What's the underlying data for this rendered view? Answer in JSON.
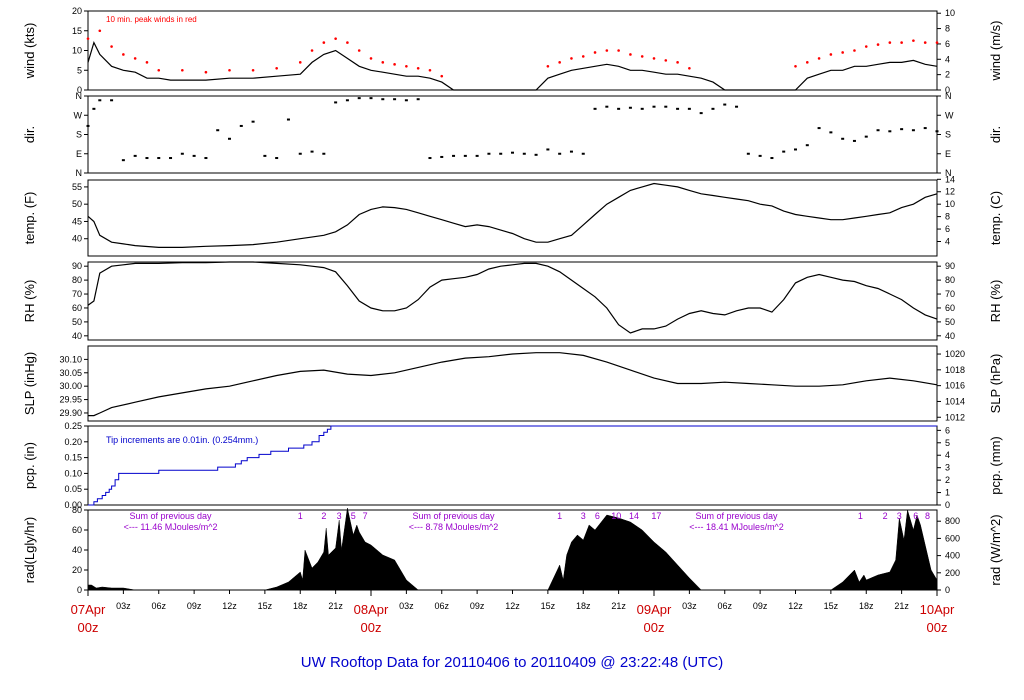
{
  "figure_title": "UW Rooftop Data for 20110406  to  20110409 @ 23:22:48  (UTC)",
  "colors": {
    "axes": "#000000",
    "data": "#000000",
    "peak": "#ff0000",
    "precip": "#0000cc",
    "solar_note": "#9900cc",
    "date_label": "#cc0000",
    "title": "#0000cc"
  },
  "time_axis": {
    "range_hours": [
      0,
      72
    ],
    "hour_ticks": [
      "03z",
      "06z",
      "09z",
      "12z",
      "15z",
      "18z",
      "21z",
      "03z",
      "06z",
      "09z",
      "12z",
      "15z",
      "18z",
      "21z",
      "03z",
      "06z",
      "09z",
      "12z",
      "15z",
      "18z",
      "21z"
    ],
    "hour_tick_positions": [
      3,
      6,
      9,
      12,
      15,
      18,
      21,
      27,
      30,
      33,
      36,
      39,
      42,
      45,
      51,
      54,
      57,
      60,
      63,
      66,
      69
    ],
    "date_labels": [
      {
        "date": "07Apr",
        "hour": "00z",
        "at": 0
      },
      {
        "date": "08Apr",
        "hour": "00z",
        "at": 24
      },
      {
        "date": "09Apr",
        "hour": "00z",
        "at": 48
      },
      {
        "date": "10Apr",
        "hour": "00z",
        "at": 72
      }
    ]
  },
  "chart_data": [
    {
      "type": "line",
      "id": "wind",
      "left_label": "wind (kts)",
      "right_label": "wind (m/s)",
      "annotation": "10 min. peak winds in red",
      "ylim": [
        0,
        20
      ],
      "left_ticks": [
        "0",
        "5",
        "10",
        "15",
        "20"
      ],
      "left_tick_values": [
        0,
        5,
        10,
        15,
        20
      ],
      "right_ticks": [
        "0",
        "2",
        "4",
        "6",
        "8",
        "10"
      ],
      "right_tick_values_left_units": [
        0,
        3.89,
        7.78,
        11.66,
        15.55,
        19.44
      ],
      "series": [
        {
          "key": "speed",
          "x": [
            0,
            0.5,
            1,
            2,
            3,
            4,
            5,
            6,
            7,
            8,
            10,
            12,
            14,
            16,
            18,
            19,
            20,
            21,
            22,
            23,
            24,
            25,
            26,
            27,
            28,
            29,
            30,
            31,
            32,
            33,
            34,
            35,
            36,
            37,
            38,
            39,
            40,
            41,
            42,
            43,
            44,
            45,
            46,
            47,
            48,
            49,
            50,
            51,
            52,
            53,
            54,
            55,
            56,
            57,
            58,
            59,
            60,
            61,
            62,
            63,
            64,
            65,
            66,
            67,
            68,
            69,
            70,
            71,
            72
          ],
          "y": [
            7,
            12,
            9,
            6,
            5,
            4.5,
            3,
            3,
            2.5,
            2.5,
            2.5,
            3,
            3,
            3.5,
            4,
            7,
            9,
            10,
            8,
            6,
            5,
            4.5,
            4,
            3.5,
            3.5,
            3,
            2,
            0,
            0,
            0,
            0,
            0,
            0,
            0,
            0,
            3,
            4,
            5,
            5.5,
            6,
            6.5,
            6,
            5,
            5,
            4.5,
            4,
            4,
            3.5,
            3,
            2,
            0,
            0,
            0,
            0,
            0,
            0,
            0,
            3,
            4,
            5,
            5,
            6,
            6,
            6.5,
            7,
            7,
            7.5,
            6.5,
            6
          ]
        },
        {
          "key": "peak",
          "x": [
            0,
            1,
            2,
            3,
            4,
            5,
            6,
            8,
            10,
            12,
            14,
            16,
            18,
            19,
            20,
            21,
            22,
            23,
            24,
            25,
            26,
            27,
            28,
            29,
            30,
            39,
            40,
            41,
            42,
            43,
            44,
            45,
            46,
            47,
            48,
            49,
            50,
            51,
            60,
            61,
            62,
            63,
            64,
            65,
            66,
            67,
            68,
            69,
            70,
            71,
            72
          ],
          "y": [
            13,
            15,
            11,
            9,
            8,
            7,
            5,
            5,
            4.5,
            5,
            5,
            5.5,
            7,
            10,
            12,
            13,
            12,
            10,
            8,
            7,
            6.5,
            6,
            5.5,
            5,
            3.5,
            6,
            7,
            8,
            8.5,
            9.5,
            10,
            10,
            9,
            8.5,
            8,
            7.5,
            7,
            5.5,
            6,
            7,
            8,
            9,
            9.5,
            10,
            11,
            11.5,
            12,
            12,
            12.5,
            12,
            12
          ]
        }
      ]
    },
    {
      "type": "scatter",
      "id": "dir",
      "left_label": "dir.",
      "right_label": "dir.",
      "ylim": [
        0,
        360
      ],
      "left_ticks": [
        "N",
        "E",
        "S",
        "W",
        "N"
      ],
      "tick_values": [
        0,
        90,
        180,
        270,
        360
      ],
      "right_ticks": [
        "N",
        "E",
        "S",
        "W",
        "N"
      ],
      "x": [
        0,
        0.5,
        1,
        2,
        3,
        4,
        5,
        6,
        7,
        8,
        9,
        10,
        11,
        12,
        13,
        14,
        15,
        16,
        17,
        18,
        19,
        20,
        21,
        22,
        23,
        24,
        25,
        26,
        27,
        28,
        29,
        30,
        31,
        32,
        33,
        34,
        35,
        36,
        37,
        38,
        39,
        40,
        41,
        42,
        43,
        44,
        45,
        46,
        47,
        48,
        49,
        50,
        51,
        52,
        53,
        54,
        55,
        56,
        57,
        58,
        59,
        60,
        61,
        62,
        63,
        64,
        65,
        66,
        67,
        68,
        69,
        70,
        71,
        72
      ],
      "y": [
        220,
        300,
        340,
        340,
        60,
        80,
        70,
        70,
        70,
        90,
        80,
        70,
        200,
        160,
        220,
        240,
        80,
        70,
        250,
        90,
        100,
        90,
        330,
        340,
        350,
        350,
        345,
        345,
        340,
        345,
        70,
        75,
        80,
        80,
        80,
        90,
        90,
        95,
        90,
        85,
        110,
        90,
        100,
        90,
        300,
        310,
        300,
        305,
        300,
        310,
        310,
        300,
        300,
        280,
        300,
        320,
        310,
        90,
        80,
        70,
        100,
        110,
        130,
        210,
        190,
        160,
        150,
        170,
        200,
        195,
        205,
        200,
        210,
        195
      ]
    },
    {
      "type": "line",
      "id": "temp",
      "left_label": "temp. (F)",
      "right_label": "temp. (C)",
      "ylim": [
        35,
        57
      ],
      "left_ticks": [
        "40",
        "45",
        "50",
        "55"
      ],
      "left_tick_values": [
        40,
        45,
        50,
        55
      ],
      "right_ticks": [
        "4",
        "6",
        "8",
        "10",
        "12",
        "14"
      ],
      "right_tick_values_left_units": [
        39.2,
        42.8,
        46.4,
        50,
        53.6,
        57.2
      ],
      "x": [
        0,
        0.5,
        1,
        2,
        3,
        4,
        6,
        8,
        10,
        12,
        14,
        16,
        18,
        20,
        21,
        22,
        23,
        24,
        25,
        26,
        27,
        28,
        29,
        30,
        31,
        32,
        33,
        34,
        35,
        36,
        37,
        38,
        39,
        40,
        41,
        42,
        43,
        44,
        45,
        46,
        47,
        48,
        49,
        50,
        51,
        52,
        53,
        54,
        55,
        56,
        57,
        58,
        59,
        60,
        61,
        62,
        63,
        64,
        65,
        66,
        67,
        68,
        69,
        70,
        71,
        72
      ],
      "y": [
        46.5,
        45,
        41,
        39,
        38.5,
        38,
        37.5,
        37.5,
        37.8,
        38,
        38.3,
        39,
        40,
        41,
        42,
        44,
        47,
        48.5,
        49.2,
        49,
        48.5,
        47.5,
        46.5,
        45.5,
        44.5,
        43.5,
        44,
        43.5,
        42.5,
        41.5,
        40,
        39,
        39,
        40,
        41,
        44,
        47,
        50,
        52,
        54,
        55,
        56,
        55.5,
        55,
        54,
        53,
        52.5,
        52,
        51.5,
        51,
        50,
        49.5,
        48,
        47,
        46.5,
        46,
        45.5,
        45.5,
        46,
        46.5,
        47,
        47.5,
        49,
        50,
        52,
        53
      ]
    },
    {
      "type": "line",
      "id": "rh",
      "left_label": "RH (%)",
      "right_label": "RH (%)",
      "ylim": [
        37,
        93
      ],
      "left_ticks": [
        "40",
        "50",
        "60",
        "70",
        "80",
        "90"
      ],
      "left_tick_values": [
        40,
        50,
        60,
        70,
        80,
        90
      ],
      "right_ticks": [
        "40",
        "50",
        "60",
        "70",
        "80",
        "90"
      ],
      "x": [
        0,
        0.5,
        1,
        2,
        3,
        4,
        6,
        8,
        10,
        12,
        14,
        16,
        18,
        19,
        20,
        21,
        22,
        23,
        24,
        25,
        26,
        27,
        28,
        29,
        30,
        31,
        32,
        33,
        34,
        35,
        36,
        37,
        38,
        39,
        40,
        41,
        42,
        43,
        44,
        45,
        46,
        47,
        48,
        49,
        50,
        51,
        52,
        53,
        54,
        55,
        56,
        57,
        58,
        59,
        60,
        61,
        62,
        63,
        64,
        65,
        66,
        67,
        68,
        69,
        70,
        71,
        72
      ],
      "y": [
        62,
        65,
        85,
        90,
        91,
        92,
        92,
        92.5,
        92.5,
        93,
        93,
        92,
        91,
        90,
        89,
        86,
        76,
        65,
        60,
        58,
        58,
        60,
        66,
        75,
        80,
        81,
        82,
        84,
        88,
        90,
        91,
        92,
        92,
        90,
        86,
        80,
        74,
        68,
        60,
        48,
        42,
        45,
        45,
        47,
        52,
        56,
        58,
        56,
        55,
        58,
        60,
        60,
        57,
        66,
        78,
        82,
        84,
        82,
        80,
        79,
        76,
        74,
        70,
        66,
        60,
        55,
        52
      ]
    },
    {
      "type": "line",
      "id": "slp",
      "left_label": "SLP (inHg)",
      "right_label": "SLP (hPa)",
      "ylim": [
        29.87,
        30.15
      ],
      "left_ticks": [
        "29.90",
        "29.95",
        "30.00",
        "30.05",
        "30.10"
      ],
      "left_tick_values": [
        29.9,
        29.95,
        30.0,
        30.05,
        30.1
      ],
      "right_ticks": [
        "1012",
        "1014",
        "1016",
        "1018",
        "1020"
      ],
      "right_tick_values_left_units": [
        29.884,
        29.943,
        30.002,
        30.061,
        30.12
      ],
      "x": [
        0,
        0.5,
        1,
        2,
        4,
        6,
        8,
        10,
        12,
        14,
        16,
        18,
        20,
        22,
        24,
        26,
        28,
        30,
        32,
        34,
        36,
        38,
        40,
        42,
        44,
        46,
        48,
        50,
        52,
        54,
        56,
        58,
        60,
        62,
        64,
        66,
        68,
        70,
        72
      ],
      "y": [
        29.89,
        29.89,
        29.9,
        29.92,
        29.94,
        29.96,
        29.975,
        29.99,
        30.0,
        30.02,
        30.04,
        30.055,
        30.06,
        30.045,
        30.04,
        30.05,
        30.07,
        30.09,
        30.105,
        30.11,
        30.12,
        30.125,
        30.125,
        30.115,
        30.09,
        30.06,
        30.03,
        30.01,
        30.01,
        30.015,
        30.01,
        30.005,
        30.0,
        30.0,
        30.005,
        30.02,
        30.03,
        30.02,
        30.005
      ]
    },
    {
      "type": "line",
      "id": "pcp",
      "left_label": "pcp. (in)",
      "right_label": "pcp. (mm)",
      "annotation": "Tip increments are 0.01in. (0.254mm.)",
      "ylim": [
        0,
        0.25
      ],
      "left_ticks": [
        "0.00",
        "0.05",
        "0.10",
        "0.15",
        "0.20",
        "0.25"
      ],
      "left_tick_values": [
        0,
        0.05,
        0.1,
        0.15,
        0.2,
        0.25
      ],
      "right_ticks": [
        "0",
        "1",
        "2",
        "3",
        "4",
        "5",
        "6"
      ],
      "right_tick_values_left_units": [
        0,
        0.0394,
        0.0787,
        0.1181,
        0.1575,
        0.1969,
        0.2362
      ],
      "x": [
        0,
        0.5,
        0.8,
        1.2,
        1.5,
        1.8,
        2.0,
        2.3,
        2.6,
        3.0,
        6.0,
        11.0,
        12.5,
        13.0,
        13.5,
        14.5,
        15.5,
        17.0,
        18.3,
        19.0,
        19.6,
        20.0,
        20.3,
        20.6,
        72
      ],
      "y": [
        0,
        0.01,
        0.02,
        0.03,
        0.04,
        0.05,
        0.06,
        0.08,
        0.1,
        0.1,
        0.11,
        0.12,
        0.13,
        0.14,
        0.15,
        0.16,
        0.17,
        0.18,
        0.19,
        0.2,
        0.22,
        0.23,
        0.24,
        0.25,
        0.25
      ]
    },
    {
      "type": "area",
      "id": "rad",
      "left_label": "rad(Lgly/hr)",
      "right_label": "rad (W/m^2)",
      "ylim": [
        0,
        80
      ],
      "left_ticks": [
        "0",
        "20",
        "40",
        "60",
        "80"
      ],
      "left_tick_values": [
        0,
        20,
        40,
        60,
        80
      ],
      "right_ticks": [
        "0",
        "200",
        "400",
        "600",
        "800"
      ],
      "right_tick_values_left_units": [
        0,
        17.2,
        34.4,
        51.6,
        68.8
      ],
      "day_notes": [
        {
          "line1": "Sum of previous day",
          "line2": "<--- 11.46 MJoules/m^2",
          "at": 7
        },
        {
          "line1": "Sum of previous day",
          "line2": "<--- 8.78 MJoules/m^2",
          "at": 31
        },
        {
          "line1": "Sum of previous day",
          "line2": "<--- 18.41 MJoules/m^2",
          "at": 55
        }
      ],
      "hour_markers": [
        {
          "label": "1",
          "at": 18.0
        },
        {
          "label": "2",
          "at": 20.0
        },
        {
          "label": "3",
          "at": 21.3
        },
        {
          "label": "5",
          "at": 22.5
        },
        {
          "label": "7",
          "at": 23.5
        },
        {
          "label": "1",
          "at": 40.0
        },
        {
          "label": "3",
          "at": 42.0
        },
        {
          "label": "6",
          "at": 43.2
        },
        {
          "label": "10",
          "at": 44.8
        },
        {
          "label": "14",
          "at": 46.3
        },
        {
          "label": "17",
          "at": 48.2
        },
        {
          "label": "1",
          "at": 65.5
        },
        {
          "label": "2",
          "at": 67.6
        },
        {
          "label": "3",
          "at": 68.8
        },
        {
          "label": "6",
          "at": 70.2
        },
        {
          "label": "8",
          "at": 71.2
        }
      ],
      "x": [
        0,
        0.3,
        0.7,
        1.2,
        2,
        3,
        4,
        15,
        16,
        17,
        18,
        18.2,
        18.4,
        19,
        19.5,
        20,
        20.2,
        20.4,
        21,
        21.3,
        21.5,
        22,
        22.5,
        22.8,
        23,
        23.5,
        24,
        24.5,
        25,
        26,
        27,
        28,
        39,
        40,
        40.3,
        40.6,
        41,
        41.5,
        42,
        42.5,
        43,
        44,
        45,
        46,
        47,
        48,
        49,
        50,
        51,
        52,
        63,
        64,
        65,
        65.4,
        65.8,
        66,
        67,
        68,
        68.5,
        68.8,
        69.2,
        69.5,
        70,
        70.3,
        70.6,
        71,
        71.5,
        72
      ],
      "y": [
        5,
        5,
        2,
        3,
        2,
        2,
        0,
        0,
        3,
        8,
        18,
        10,
        40,
        22,
        28,
        38,
        62,
        35,
        42,
        70,
        40,
        82,
        55,
        65,
        58,
        48,
        45,
        40,
        35,
        30,
        10,
        0,
        0,
        25,
        10,
        35,
        48,
        55,
        50,
        65,
        60,
        75,
        72,
        68,
        60,
        48,
        38,
        25,
        12,
        0,
        0,
        8,
        20,
        8,
        15,
        10,
        15,
        18,
        30,
        72,
        50,
        80,
        60,
        75,
        65,
        45,
        20,
        10
      ]
    }
  ]
}
